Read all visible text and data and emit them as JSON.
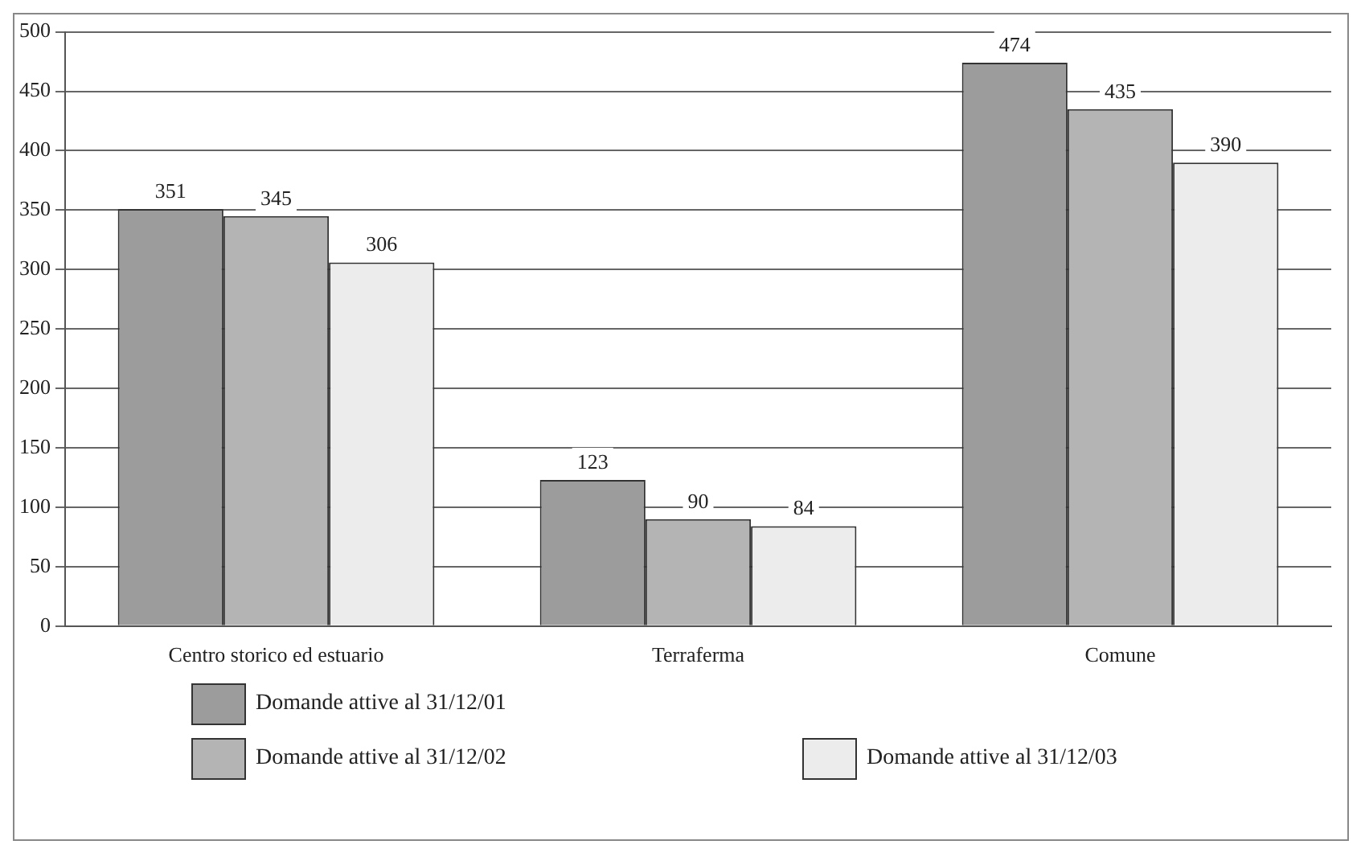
{
  "chart_data": {
    "type": "bar",
    "categories": [
      "Centro storico ed estuario",
      "Terraferma",
      "Comune"
    ],
    "series": [
      {
        "name": "Domande attive al 31/12/01",
        "color": "#9c9c9c",
        "values": [
          351,
          123,
          474
        ]
      },
      {
        "name": "Domande attive al 31/12/02",
        "color": "#b4b4b4",
        "values": [
          345,
          90,
          435
        ]
      },
      {
        "name": "Domande attive al 31/12/03",
        "color": "#ececec",
        "values": [
          306,
          84,
          390
        ]
      }
    ],
    "ylim": [
      0,
      500
    ],
    "yticks": [
      0,
      50,
      100,
      150,
      200,
      250,
      300,
      350,
      400,
      450,
      500
    ],
    "grid": "y",
    "legend": "bottom",
    "data_labels": true
  }
}
